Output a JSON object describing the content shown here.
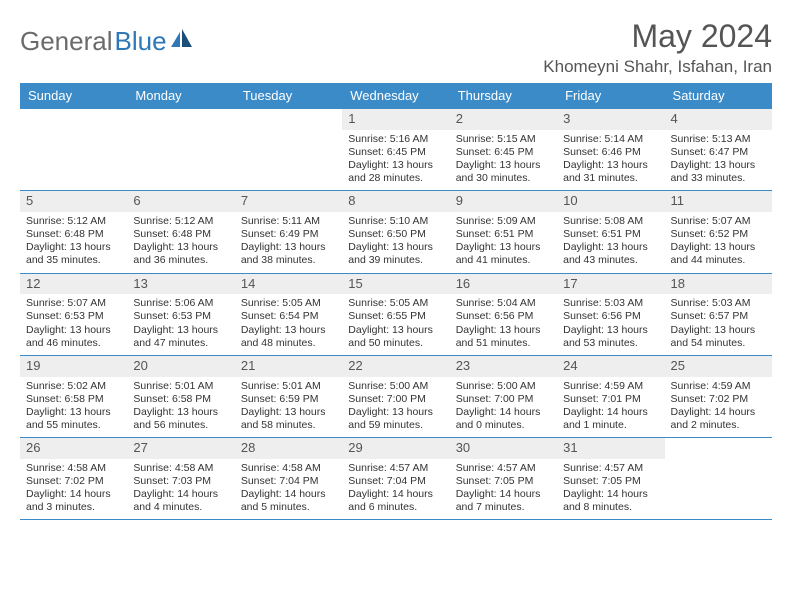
{
  "logo": {
    "text1": "General",
    "text2": "Blue"
  },
  "title": "May 2024",
  "location": "Khomeyni Shahr, Isfahan, Iran",
  "colors": {
    "header_bg": "#3b8bc9",
    "header_text": "#ffffff",
    "daynum_bg": "#eeeeee",
    "divider": "#3b8bc9",
    "logo_gray": "#6b6b6b",
    "logo_blue": "#2e77b8",
    "title_color": "#555555",
    "body_text": "#333333"
  },
  "days_of_week": [
    "Sunday",
    "Monday",
    "Tuesday",
    "Wednesday",
    "Thursday",
    "Friday",
    "Saturday"
  ],
  "weeks": [
    [
      null,
      null,
      null,
      {
        "n": "1",
        "sr": "5:16 AM",
        "ss": "6:45 PM",
        "dl": "13 hours and 28 minutes."
      },
      {
        "n": "2",
        "sr": "5:15 AM",
        "ss": "6:45 PM",
        "dl": "13 hours and 30 minutes."
      },
      {
        "n": "3",
        "sr": "5:14 AM",
        "ss": "6:46 PM",
        "dl": "13 hours and 31 minutes."
      },
      {
        "n": "4",
        "sr": "5:13 AM",
        "ss": "6:47 PM",
        "dl": "13 hours and 33 minutes."
      }
    ],
    [
      {
        "n": "5",
        "sr": "5:12 AM",
        "ss": "6:48 PM",
        "dl": "13 hours and 35 minutes."
      },
      {
        "n": "6",
        "sr": "5:12 AM",
        "ss": "6:48 PM",
        "dl": "13 hours and 36 minutes."
      },
      {
        "n": "7",
        "sr": "5:11 AM",
        "ss": "6:49 PM",
        "dl": "13 hours and 38 minutes."
      },
      {
        "n": "8",
        "sr": "5:10 AM",
        "ss": "6:50 PM",
        "dl": "13 hours and 39 minutes."
      },
      {
        "n": "9",
        "sr": "5:09 AM",
        "ss": "6:51 PM",
        "dl": "13 hours and 41 minutes."
      },
      {
        "n": "10",
        "sr": "5:08 AM",
        "ss": "6:51 PM",
        "dl": "13 hours and 43 minutes."
      },
      {
        "n": "11",
        "sr": "5:07 AM",
        "ss": "6:52 PM",
        "dl": "13 hours and 44 minutes."
      }
    ],
    [
      {
        "n": "12",
        "sr": "5:07 AM",
        "ss": "6:53 PM",
        "dl": "13 hours and 46 minutes."
      },
      {
        "n": "13",
        "sr": "5:06 AM",
        "ss": "6:53 PM",
        "dl": "13 hours and 47 minutes."
      },
      {
        "n": "14",
        "sr": "5:05 AM",
        "ss": "6:54 PM",
        "dl": "13 hours and 48 minutes."
      },
      {
        "n": "15",
        "sr": "5:05 AM",
        "ss": "6:55 PM",
        "dl": "13 hours and 50 minutes."
      },
      {
        "n": "16",
        "sr": "5:04 AM",
        "ss": "6:56 PM",
        "dl": "13 hours and 51 minutes."
      },
      {
        "n": "17",
        "sr": "5:03 AM",
        "ss": "6:56 PM",
        "dl": "13 hours and 53 minutes."
      },
      {
        "n": "18",
        "sr": "5:03 AM",
        "ss": "6:57 PM",
        "dl": "13 hours and 54 minutes."
      }
    ],
    [
      {
        "n": "19",
        "sr": "5:02 AM",
        "ss": "6:58 PM",
        "dl": "13 hours and 55 minutes."
      },
      {
        "n": "20",
        "sr": "5:01 AM",
        "ss": "6:58 PM",
        "dl": "13 hours and 56 minutes."
      },
      {
        "n": "21",
        "sr": "5:01 AM",
        "ss": "6:59 PM",
        "dl": "13 hours and 58 minutes."
      },
      {
        "n": "22",
        "sr": "5:00 AM",
        "ss": "7:00 PM",
        "dl": "13 hours and 59 minutes."
      },
      {
        "n": "23",
        "sr": "5:00 AM",
        "ss": "7:00 PM",
        "dl": "14 hours and 0 minutes."
      },
      {
        "n": "24",
        "sr": "4:59 AM",
        "ss": "7:01 PM",
        "dl": "14 hours and 1 minute."
      },
      {
        "n": "25",
        "sr": "4:59 AM",
        "ss": "7:02 PM",
        "dl": "14 hours and 2 minutes."
      }
    ],
    [
      {
        "n": "26",
        "sr": "4:58 AM",
        "ss": "7:02 PM",
        "dl": "14 hours and 3 minutes."
      },
      {
        "n": "27",
        "sr": "4:58 AM",
        "ss": "7:03 PM",
        "dl": "14 hours and 4 minutes."
      },
      {
        "n": "28",
        "sr": "4:58 AM",
        "ss": "7:04 PM",
        "dl": "14 hours and 5 minutes."
      },
      {
        "n": "29",
        "sr": "4:57 AM",
        "ss": "7:04 PM",
        "dl": "14 hours and 6 minutes."
      },
      {
        "n": "30",
        "sr": "4:57 AM",
        "ss": "7:05 PM",
        "dl": "14 hours and 7 minutes."
      },
      {
        "n": "31",
        "sr": "4:57 AM",
        "ss": "7:05 PM",
        "dl": "14 hours and 8 minutes."
      },
      null
    ]
  ],
  "labels": {
    "sunrise": "Sunrise: ",
    "sunset": "Sunset: ",
    "daylight": "Daylight: "
  }
}
